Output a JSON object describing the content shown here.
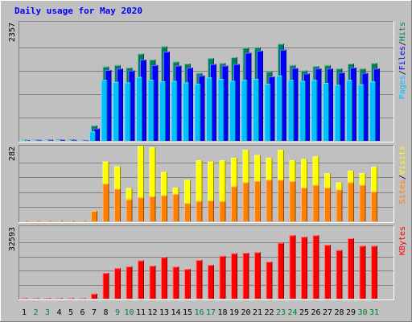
{
  "title": "Daily usage for May 2020",
  "colors": {
    "background": "#c0c0c0",
    "hits": "#00805a",
    "files": "#0000ff",
    "pages": "#00c0ff",
    "visits": "#ffff00",
    "sites": "#ff8000",
    "kbytes": "#ff0000",
    "weekend_label": "#008040",
    "weekday_label": "#000000",
    "title": "#0000ff"
  },
  "chart_data": [
    {
      "type": "bar",
      "title": "Daily usage for May 2020",
      "ymax_label": "2357",
      "ymax": 2357,
      "legend": [
        {
          "name": "Pages",
          "color": "#00c0ff"
        },
        {
          "name": "Files",
          "color": "#0000ff"
        },
        {
          "name": "Hits",
          "color": "#00805a"
        }
      ],
      "legend_separator": "/",
      "categories": [
        "1",
        "2",
        "3",
        "4",
        "5",
        "6",
        "7",
        "8",
        "9",
        "10",
        "11",
        "12",
        "13",
        "14",
        "15",
        "16",
        "17",
        "18",
        "19",
        "20",
        "21",
        "22",
        "23",
        "24",
        "25",
        "26",
        "27",
        "28",
        "29",
        "30",
        "31"
      ],
      "series": [
        {
          "name": "Hits",
          "values": [
            20,
            25,
            25,
            30,
            28,
            18,
            310,
            1500,
            1530,
            1480,
            1760,
            1640,
            1910,
            1600,
            1560,
            1370,
            1670,
            1570,
            1690,
            1880,
            1890,
            1400,
            1960,
            1530,
            1420,
            1510,
            1530,
            1460,
            1560,
            1460,
            1570
          ]
        },
        {
          "name": "Files",
          "values": [
            15,
            18,
            20,
            24,
            20,
            12,
            250,
            1430,
            1460,
            1420,
            1640,
            1530,
            1800,
            1520,
            1480,
            1320,
            1550,
            1520,
            1550,
            1780,
            1820,
            1300,
            1840,
            1470,
            1360,
            1460,
            1460,
            1380,
            1480,
            1370,
            1460
          ]
        },
        {
          "name": "Pages",
          "values": [
            8,
            10,
            10,
            12,
            10,
            8,
            190,
            1230,
            1190,
            1180,
            1290,
            1230,
            1200,
            1210,
            1180,
            1150,
            1280,
            1250,
            1210,
            1230,
            1250,
            1150,
            1320,
            1230,
            1210,
            1230,
            1170,
            1130,
            1230,
            1140,
            1200
          ]
        }
      ]
    },
    {
      "type": "bar",
      "ymax_label": "282",
      "ymax": 282,
      "legend": [
        {
          "name": "Sites",
          "color": "#ff8000"
        },
        {
          "name": "Visits",
          "color": "#ffff00"
        }
      ],
      "legend_separator": "/",
      "categories": [
        "1",
        "2",
        "3",
        "4",
        "5",
        "6",
        "7",
        "8",
        "9",
        "10",
        "11",
        "12",
        "13",
        "14",
        "15",
        "16",
        "17",
        "18",
        "19",
        "20",
        "21",
        "22",
        "23",
        "24",
        "25",
        "26",
        "27",
        "28",
        "29",
        "30",
        "31"
      ],
      "series": [
        {
          "name": "Visits",
          "values": [
            0,
            0,
            0,
            0,
            0,
            0,
            41,
            230,
            212,
            128,
            290,
            285,
            190,
            130,
            160,
            235,
            230,
            235,
            245,
            275,
            255,
            245,
            275,
            235,
            240,
            250,
            185,
            150,
            195,
            185,
            210
          ]
        },
        {
          "name": "Sites",
          "values": [
            0,
            0,
            0,
            0,
            0,
            0,
            40,
            145,
            125,
            85,
            92,
            96,
            100,
            105,
            70,
            78,
            80,
            78,
            135,
            150,
            155,
            160,
            160,
            155,
            130,
            140,
            130,
            122,
            150,
            140,
            115
          ]
        }
      ]
    },
    {
      "type": "bar",
      "ymax_label": "32593",
      "ymax": 32593,
      "legend": [
        {
          "name": "KBytes",
          "color": "#ff0000"
        }
      ],
      "categories": [
        "1",
        "2",
        "3",
        "4",
        "5",
        "6",
        "7",
        "8",
        "9",
        "10",
        "11",
        "12",
        "13",
        "14",
        "15",
        "16",
        "17",
        "18",
        "19",
        "20",
        "21",
        "22",
        "23",
        "24",
        "25",
        "26",
        "27",
        "28",
        "29",
        "30",
        "31"
      ],
      "series": [
        {
          "name": "KBytes",
          "values": [
            20,
            20,
            20,
            20,
            20,
            20,
            2300,
            12000,
            14200,
            15000,
            17800,
            15300,
            19300,
            14900,
            13800,
            18000,
            15700,
            19900,
            21100,
            21300,
            21600,
            17200,
            26000,
            29500,
            28800,
            29500,
            25000,
            22600,
            28100,
            24600,
            24600
          ]
        }
      ]
    }
  ],
  "weekend_days": [
    2,
    3,
    9,
    10,
    16,
    17,
    23,
    24,
    30,
    31
  ]
}
